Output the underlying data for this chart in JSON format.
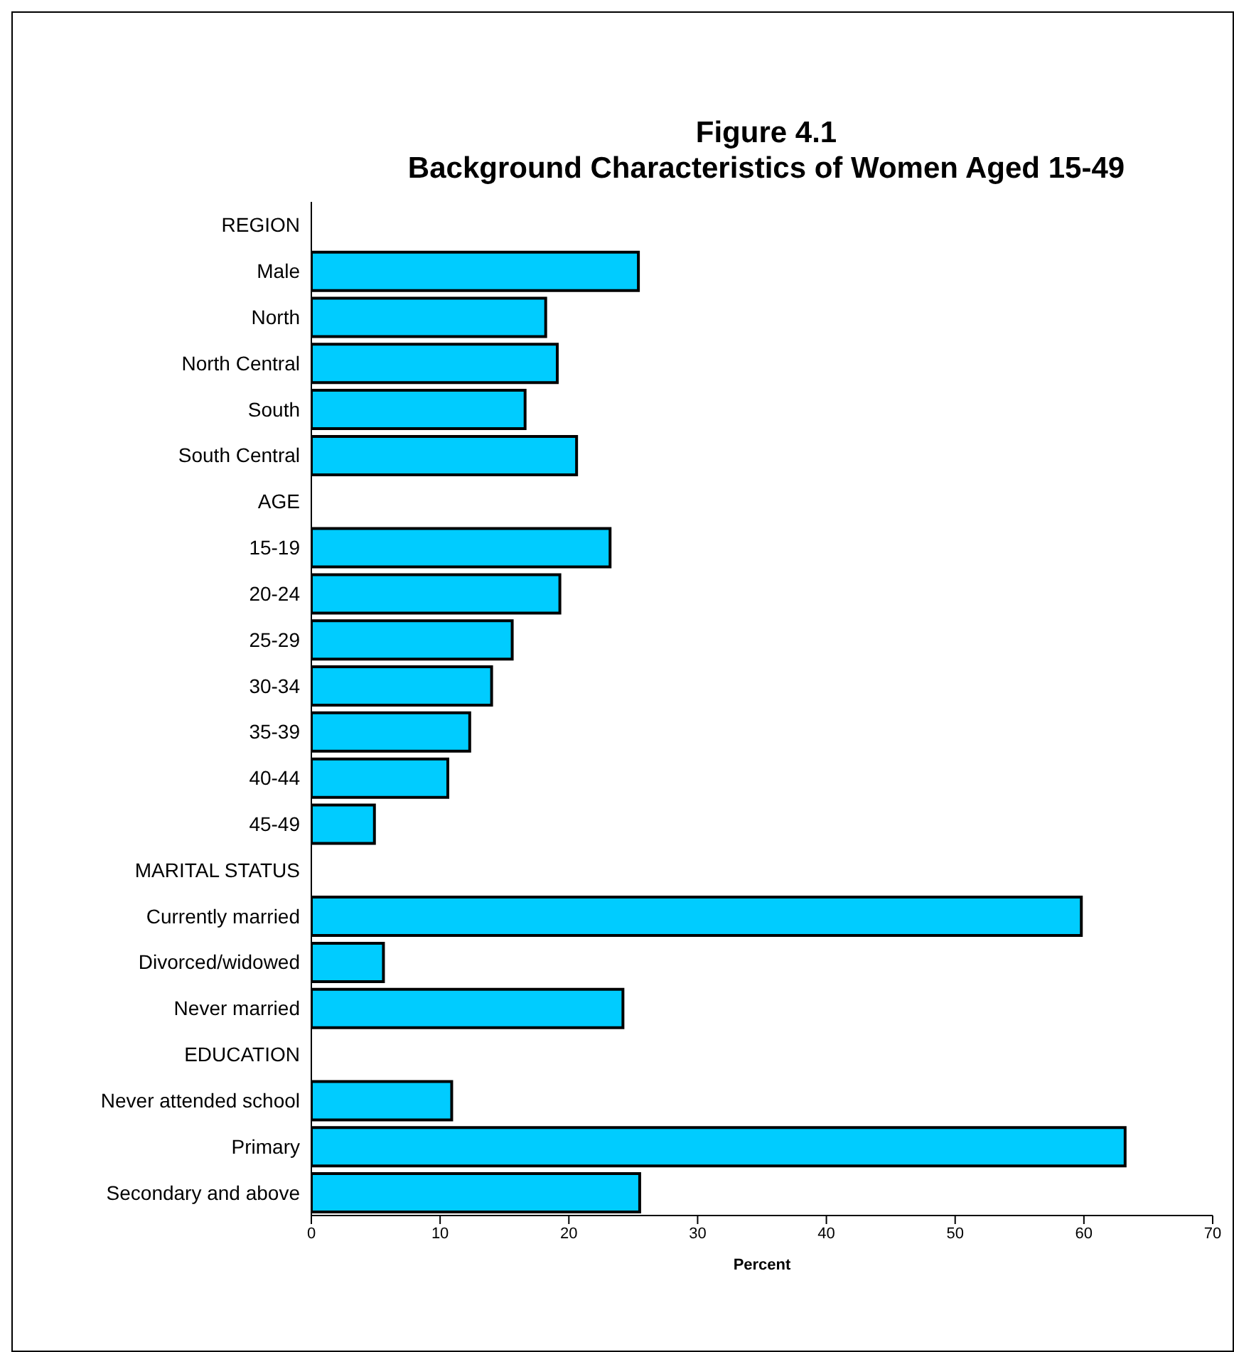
{
  "chart_data": {
    "type": "bar",
    "orientation": "horizontal",
    "title": "Figure 4.1",
    "subtitle": "Background Characteristics of Women Aged 15-49",
    "xlabel": "Percent",
    "categories": [
      "REGION",
      "Male",
      "North",
      "North Central",
      "South",
      "South Central",
      "AGE",
      "15-19",
      "20-24",
      "25-29",
      "30-34",
      "35-39",
      "40-44",
      "45-49",
      "MARITAL STATUS",
      "Currently married",
      "Divorced/widowed",
      "Never married",
      "EDUCATION",
      "Never attended school",
      "Primary",
      "Secondary and above"
    ],
    "values": [
      null,
      25.4,
      18.2,
      19.1,
      16.6,
      20.6,
      null,
      23.2,
      19.3,
      15.6,
      14.0,
      12.3,
      10.6,
      4.9,
      null,
      59.8,
      5.6,
      24.2,
      null,
      10.9,
      63.2,
      25.5
    ],
    "color": "#00ccff",
    "xlim": [
      0,
      70
    ],
    "xticks": [
      0,
      10,
      20,
      30,
      40,
      50,
      60,
      70
    ],
    "grid": false,
    "legend": false
  }
}
